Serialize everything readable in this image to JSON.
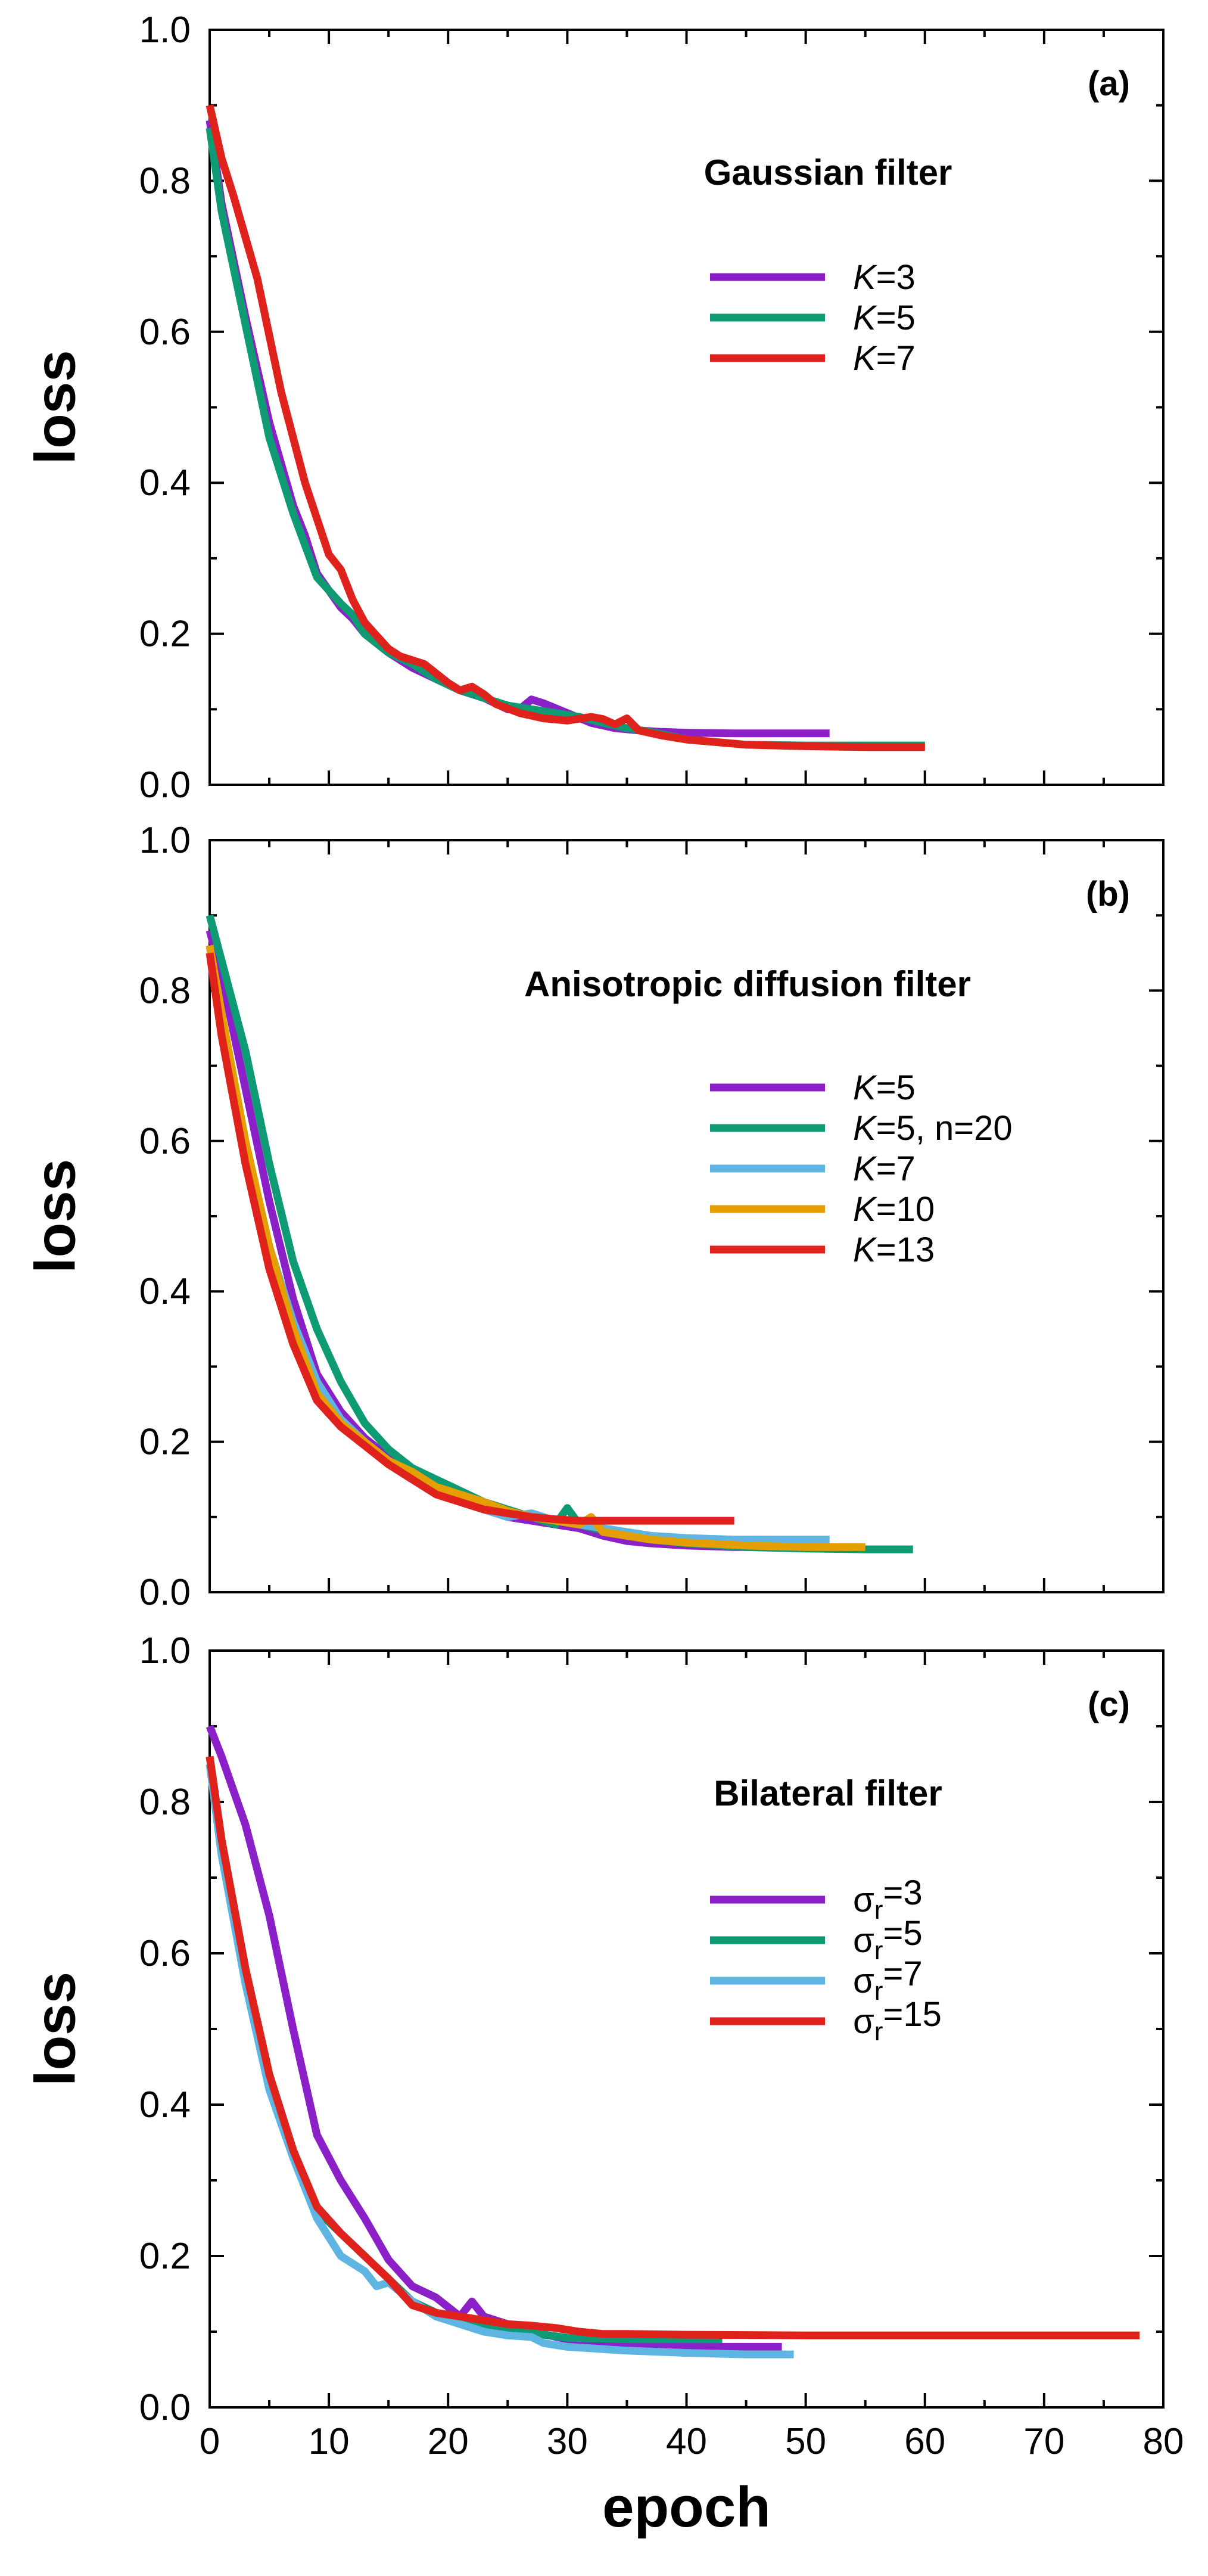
{
  "chart_data": [
    {
      "type": "line",
      "panel_label": "(a)",
      "title": "Gaussian filter",
      "xlabel": "",
      "ylabel": "loss",
      "xlim": [
        0,
        80
      ],
      "ylim": [
        0,
        1
      ],
      "yticks": [
        "0.0",
        "0.2",
        "0.4",
        "0.6",
        "0.8",
        "1.0"
      ],
      "xticks": [],
      "series": [
        {
          "name": "K=3",
          "italic": "K",
          "rest": "=3",
          "sub": "",
          "subrest": "",
          "color": "#8b1fc8",
          "x": [
            0,
            1,
            3,
            5,
            7,
            8,
            9,
            11,
            12,
            13,
            15,
            17,
            19,
            21,
            23,
            25,
            26,
            27,
            28,
            30,
            32,
            34,
            36,
            38,
            40,
            44,
            48,
            52
          ],
          "y": [
            0.88,
            0.77,
            0.62,
            0.48,
            0.37,
            0.33,
            0.28,
            0.235,
            0.22,
            0.2,
            0.175,
            0.155,
            0.14,
            0.125,
            0.115,
            0.1,
            0.1,
            0.113,
            0.108,
            0.095,
            0.082,
            0.075,
            0.072,
            0.07,
            0.069,
            0.068,
            0.068,
            0.068
          ]
        },
        {
          "name": "K=5",
          "italic": "K",
          "rest": "=5",
          "sub": "",
          "subrest": "",
          "color": "#0e9a73",
          "x": [
            0,
            1,
            3,
            5,
            7,
            9,
            11,
            12,
            13,
            15,
            17,
            19,
            21,
            23,
            25,
            27,
            29,
            31,
            33,
            35,
            37,
            40,
            45,
            50,
            55,
            60
          ],
          "y": [
            0.87,
            0.76,
            0.61,
            0.46,
            0.36,
            0.275,
            0.24,
            0.225,
            0.2,
            0.175,
            0.16,
            0.14,
            0.125,
            0.115,
            0.105,
            0.1,
            0.095,
            0.09,
            0.082,
            0.075,
            0.07,
            0.06,
            0.053,
            0.052,
            0.052,
            0.052
          ]
        },
        {
          "name": "K=7",
          "italic": "K",
          "rest": "=7",
          "sub": "",
          "subrest": "",
          "color": "#e0221c",
          "x": [
            0,
            1,
            2,
            4,
            6,
            8,
            10,
            11,
            12,
            13,
            15,
            16,
            18,
            20,
            21,
            22,
            23,
            24,
            26,
            28,
            30,
            32,
            33,
            34,
            35,
            36,
            38,
            40,
            45,
            50,
            55,
            60
          ],
          "y": [
            0.9,
            0.83,
            0.78,
            0.67,
            0.52,
            0.4,
            0.305,
            0.285,
            0.245,
            0.215,
            0.18,
            0.17,
            0.16,
            0.135,
            0.125,
            0.13,
            0.12,
            0.107,
            0.095,
            0.088,
            0.085,
            0.09,
            0.087,
            0.08,
            0.088,
            0.072,
            0.065,
            0.06,
            0.053,
            0.051,
            0.05,
            0.05
          ]
        }
      ]
    },
    {
      "type": "line",
      "panel_label": "(b)",
      "title": "Anisotropic diffusion filter",
      "xlabel": "",
      "ylabel": "loss",
      "xlim": [
        0,
        80
      ],
      "ylim": [
        0,
        1
      ],
      "yticks": [
        "0.0",
        "0.2",
        "0.4",
        "0.6",
        "0.8",
        "1.0"
      ],
      "xticks": [],
      "series": [
        {
          "name": "K=5",
          "italic": "K",
          "rest": "=5",
          "sub": "",
          "subrest": "",
          "color": "#8b1fc8",
          "x": [
            0,
            1,
            3,
            5,
            7,
            9,
            11,
            13,
            15,
            17,
            19,
            21,
            23,
            25,
            27,
            29,
            31,
            33,
            35,
            37,
            40,
            44,
            48
          ],
          "y": [
            0.88,
            0.82,
            0.67,
            0.52,
            0.39,
            0.29,
            0.24,
            0.205,
            0.18,
            0.155,
            0.135,
            0.12,
            0.11,
            0.1,
            0.095,
            0.09,
            0.085,
            0.075,
            0.068,
            0.065,
            0.062,
            0.06,
            0.06
          ]
        },
        {
          "name": "K=5, n=20",
          "italic": "K",
          "rest": "=5, n=20",
          "sub": "",
          "subrest": "",
          "color": "#0e9a73",
          "x": [
            0,
            1,
            3,
            5,
            7,
            9,
            11,
            13,
            15,
            17,
            19,
            21,
            23,
            25,
            27,
            29,
            30,
            31,
            33,
            35,
            37,
            40,
            45,
            50,
            55,
            59
          ],
          "y": [
            0.9,
            0.84,
            0.72,
            0.57,
            0.44,
            0.35,
            0.28,
            0.225,
            0.19,
            0.165,
            0.15,
            0.135,
            0.12,
            0.11,
            0.1,
            0.09,
            0.112,
            0.09,
            0.082,
            0.075,
            0.07,
            0.065,
            0.06,
            0.058,
            0.057,
            0.057
          ]
        },
        {
          "name": "K=7",
          "italic": "K",
          "rest": "=7",
          "sub": "",
          "subrest": "",
          "color": "#5fb5e2",
          "x": [
            0,
            1,
            3,
            5,
            7,
            9,
            11,
            13,
            15,
            17,
            19,
            21,
            23,
            25,
            27,
            29,
            31,
            33,
            35,
            37,
            40,
            44,
            48,
            52
          ],
          "y": [
            0.86,
            0.76,
            0.6,
            0.46,
            0.36,
            0.28,
            0.23,
            0.2,
            0.17,
            0.15,
            0.135,
            0.12,
            0.11,
            0.1,
            0.105,
            0.095,
            0.09,
            0.085,
            0.08,
            0.075,
            0.072,
            0.07,
            0.07,
            0.07
          ]
        },
        {
          "name": "K=10",
          "italic": "K",
          "rest": "=10",
          "sub": "",
          "subrest": "",
          "color": "#e69f00",
          "x": [
            0,
            1,
            3,
            5,
            7,
            9,
            11,
            13,
            15,
            17,
            19,
            21,
            23,
            25,
            27,
            29,
            31,
            32,
            33,
            35,
            37,
            40,
            45,
            50,
            55
          ],
          "y": [
            0.86,
            0.77,
            0.6,
            0.46,
            0.35,
            0.265,
            0.225,
            0.2,
            0.175,
            0.16,
            0.14,
            0.13,
            0.12,
            0.108,
            0.1,
            0.095,
            0.09,
            0.1,
            0.08,
            0.075,
            0.07,
            0.066,
            0.062,
            0.06,
            0.06
          ]
        },
        {
          "name": "K=13",
          "italic": "K",
          "rest": "=13",
          "sub": "",
          "subrest": "",
          "color": "#e0221c",
          "x": [
            0,
            1,
            3,
            5,
            7,
            9,
            11,
            13,
            15,
            17,
            19,
            21,
            23,
            25,
            27,
            29,
            31,
            33,
            35,
            38,
            44
          ],
          "y": [
            0.85,
            0.74,
            0.57,
            0.43,
            0.33,
            0.255,
            0.22,
            0.195,
            0.17,
            0.15,
            0.13,
            0.12,
            0.11,
            0.105,
            0.1,
            0.097,
            0.095,
            0.095,
            0.095,
            0.095,
            0.095
          ]
        }
      ]
    },
    {
      "type": "line",
      "panel_label": "(c)",
      "title": "Bilateral filter",
      "xlabel": "epoch",
      "ylabel": "loss",
      "xlim": [
        0,
        80
      ],
      "ylim": [
        0,
        1
      ],
      "yticks": [
        "0.0",
        "0.2",
        "0.4",
        "0.6",
        "0.8",
        "1.0"
      ],
      "xticks": [
        "0",
        "10",
        "20",
        "30",
        "40",
        "50",
        "60",
        "70",
        "80"
      ],
      "series": [
        {
          "name": "σr=3",
          "italic": "",
          "rest": "σ",
          "sub": "r",
          "subrest": "=3",
          "color": "#8b1fc8",
          "x": [
            0,
            1,
            3,
            5,
            7,
            9,
            11,
            13,
            15,
            17,
            19,
            21,
            22,
            23,
            25,
            27,
            30,
            35,
            40,
            45,
            48
          ],
          "y": [
            0.9,
            0.86,
            0.77,
            0.65,
            0.5,
            0.36,
            0.3,
            0.25,
            0.195,
            0.16,
            0.145,
            0.12,
            0.14,
            0.12,
            0.11,
            0.1,
            0.09,
            0.083,
            0.08,
            0.08,
            0.08
          ]
        },
        {
          "name": "σr=5",
          "italic": "",
          "rest": "σ",
          "sub": "r",
          "subrest": "=5",
          "color": "#0e9a73",
          "x": [
            0,
            1,
            3,
            5,
            7,
            9,
            11,
            13,
            15,
            17,
            19,
            21,
            23,
            25,
            27,
            30,
            35,
            40,
            43
          ],
          "y": [
            0.86,
            0.75,
            0.58,
            0.44,
            0.34,
            0.26,
            0.23,
            0.2,
            0.17,
            0.14,
            0.125,
            0.115,
            0.105,
            0.1,
            0.098,
            0.092,
            0.09,
            0.09,
            0.09
          ]
        },
        {
          "name": "σr=7",
          "italic": "",
          "rest": "σ",
          "sub": "r",
          "subrest": "=7",
          "color": "#5fb5e2",
          "x": [
            0,
            1,
            3,
            5,
            7,
            9,
            11,
            13,
            14,
            15,
            17,
            19,
            21,
            23,
            25,
            27,
            28,
            30,
            35,
            40,
            45,
            49
          ],
          "y": [
            0.85,
            0.73,
            0.56,
            0.42,
            0.33,
            0.25,
            0.2,
            0.18,
            0.16,
            0.165,
            0.14,
            0.12,
            0.11,
            0.1,
            0.095,
            0.093,
            0.085,
            0.08,
            0.075,
            0.072,
            0.07,
            0.07
          ]
        },
        {
          "name": "σr=15",
          "italic": "",
          "rest": "σ",
          "sub": "r",
          "subrest": "=15",
          "color": "#e0221c",
          "x": [
            0,
            1,
            3,
            5,
            7,
            9,
            11,
            13,
            15,
            17,
            19,
            21,
            23,
            25,
            27,
            29,
            31,
            33,
            35,
            40,
            50,
            60,
            70,
            78
          ],
          "y": [
            0.86,
            0.75,
            0.58,
            0.44,
            0.34,
            0.265,
            0.23,
            0.2,
            0.17,
            0.135,
            0.125,
            0.12,
            0.115,
            0.11,
            0.108,
            0.105,
            0.1,
            0.097,
            0.097,
            0.096,
            0.095,
            0.095,
            0.095,
            0.095
          ]
        }
      ]
    }
  ]
}
